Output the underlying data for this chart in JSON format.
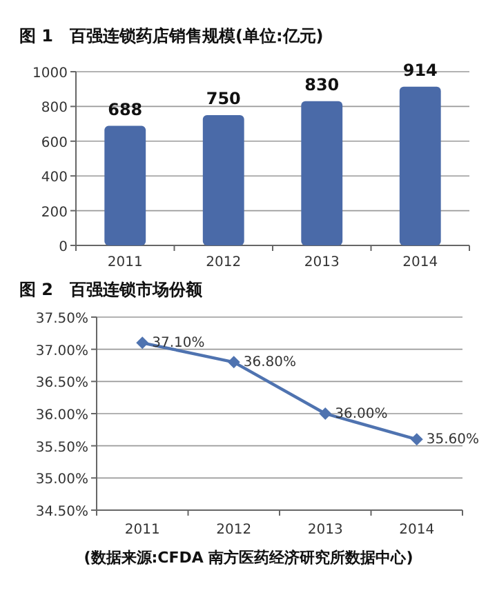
{
  "chart_data": [
    {
      "type": "bar",
      "title": "图 1　百强连锁药店销售规模(单位:亿元)",
      "categories": [
        "2011",
        "2012",
        "2013",
        "2014"
      ],
      "values": [
        688,
        750,
        830,
        914
      ],
      "color": "#4a6aa8",
      "ylim": [
        0,
        1000
      ],
      "yticks": [
        0,
        200,
        400,
        600,
        800,
        1000
      ],
      "grid": "y",
      "data_labels": true
    },
    {
      "type": "line",
      "title": "图 2　百强连锁市场份额",
      "categories": [
        "2011",
        "2012",
        "2013",
        "2014"
      ],
      "values": [
        37.1,
        36.8,
        36.0,
        35.6
      ],
      "value_labels": [
        "37.10%",
        "36.80%",
        "36.00%",
        "35.60%"
      ],
      "color": "#4f73b0",
      "marker": "diamond",
      "ylim": [
        34.5,
        37.5
      ],
      "yticks": [
        {
          "value": 34.5,
          "label": "34.50%"
        },
        {
          "value": 35,
          "label": "35.00%"
        },
        {
          "value": 35.5,
          "label": "35.50%"
        },
        {
          "value": 36,
          "label": "36.00%"
        },
        {
          "value": 36.5,
          "label": "36.50%"
        },
        {
          "value": 37,
          "label": "37.00%"
        },
        {
          "value": 37.5,
          "label": "37.50%"
        }
      ],
      "grid": "y",
      "annotations": [
        "(数据来源:CFDA 南方医药经济研究所数据中心)"
      ]
    }
  ]
}
